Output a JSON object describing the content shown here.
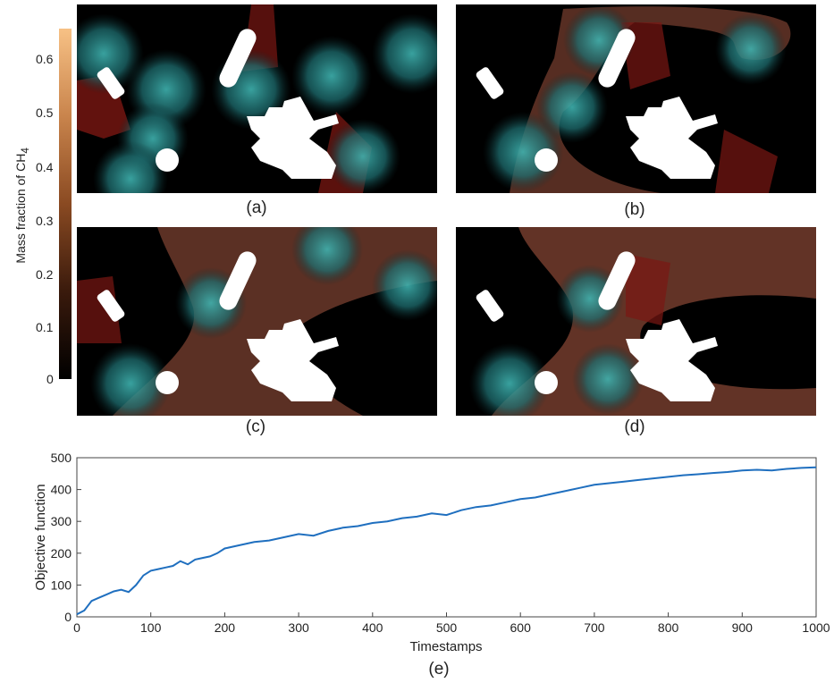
{
  "colorbar": {
    "title_prefix": "Mass fraction of CH",
    "title_subscript": "4",
    "ticks": [
      "0.6",
      "0.5",
      "0.4",
      "0.3",
      "0.2",
      "0.1",
      "0"
    ],
    "range": [
      0,
      0.65
    ],
    "colors": [
      "#000000",
      "#3a1a0c",
      "#8a4a22",
      "#c9844c",
      "#f7c185"
    ]
  },
  "panels": [
    {
      "label": "(a)"
    },
    {
      "label": "(b)"
    },
    {
      "label": "(c)"
    },
    {
      "label": "(d)"
    }
  ],
  "chart_data": {
    "type": "line",
    "xlabel": "Timestamps",
    "ylabel": "Objective function",
    "caption": "(e)",
    "xlim": [
      0,
      1000
    ],
    "ylim": [
      0,
      500
    ],
    "x_ticks": [
      "0",
      "100",
      "200",
      "300",
      "400",
      "500",
      "600",
      "700",
      "800",
      "900",
      "1000"
    ],
    "y_ticks": [
      "0",
      "100",
      "200",
      "300",
      "400",
      "500"
    ],
    "line_color": "#1f6fbf",
    "series": [
      {
        "x": [
          0,
          10,
          20,
          30,
          40,
          50,
          60,
          70,
          80,
          90,
          100,
          110,
          120,
          130,
          140,
          150,
          160,
          170,
          180,
          190,
          200,
          220,
          240,
          260,
          280,
          300,
          320,
          340,
          360,
          380,
          400,
          420,
          440,
          460,
          480,
          500,
          520,
          540,
          560,
          580,
          600,
          620,
          640,
          660,
          680,
          700,
          720,
          740,
          760,
          780,
          800,
          820,
          840,
          860,
          880,
          900,
          920,
          940,
          960,
          980,
          1000
        ],
        "y": [
          8,
          20,
          50,
          60,
          70,
          80,
          85,
          78,
          100,
          130,
          145,
          150,
          155,
          160,
          175,
          165,
          180,
          185,
          190,
          200,
          215,
          225,
          235,
          240,
          250,
          260,
          255,
          270,
          280,
          285,
          295,
          300,
          310,
          315,
          325,
          320,
          335,
          345,
          350,
          360,
          370,
          375,
          385,
          395,
          405,
          415,
          420,
          425,
          430,
          435,
          440,
          445,
          448,
          452,
          455,
          460,
          462,
          460,
          465,
          468,
          470
        ]
      }
    ]
  }
}
